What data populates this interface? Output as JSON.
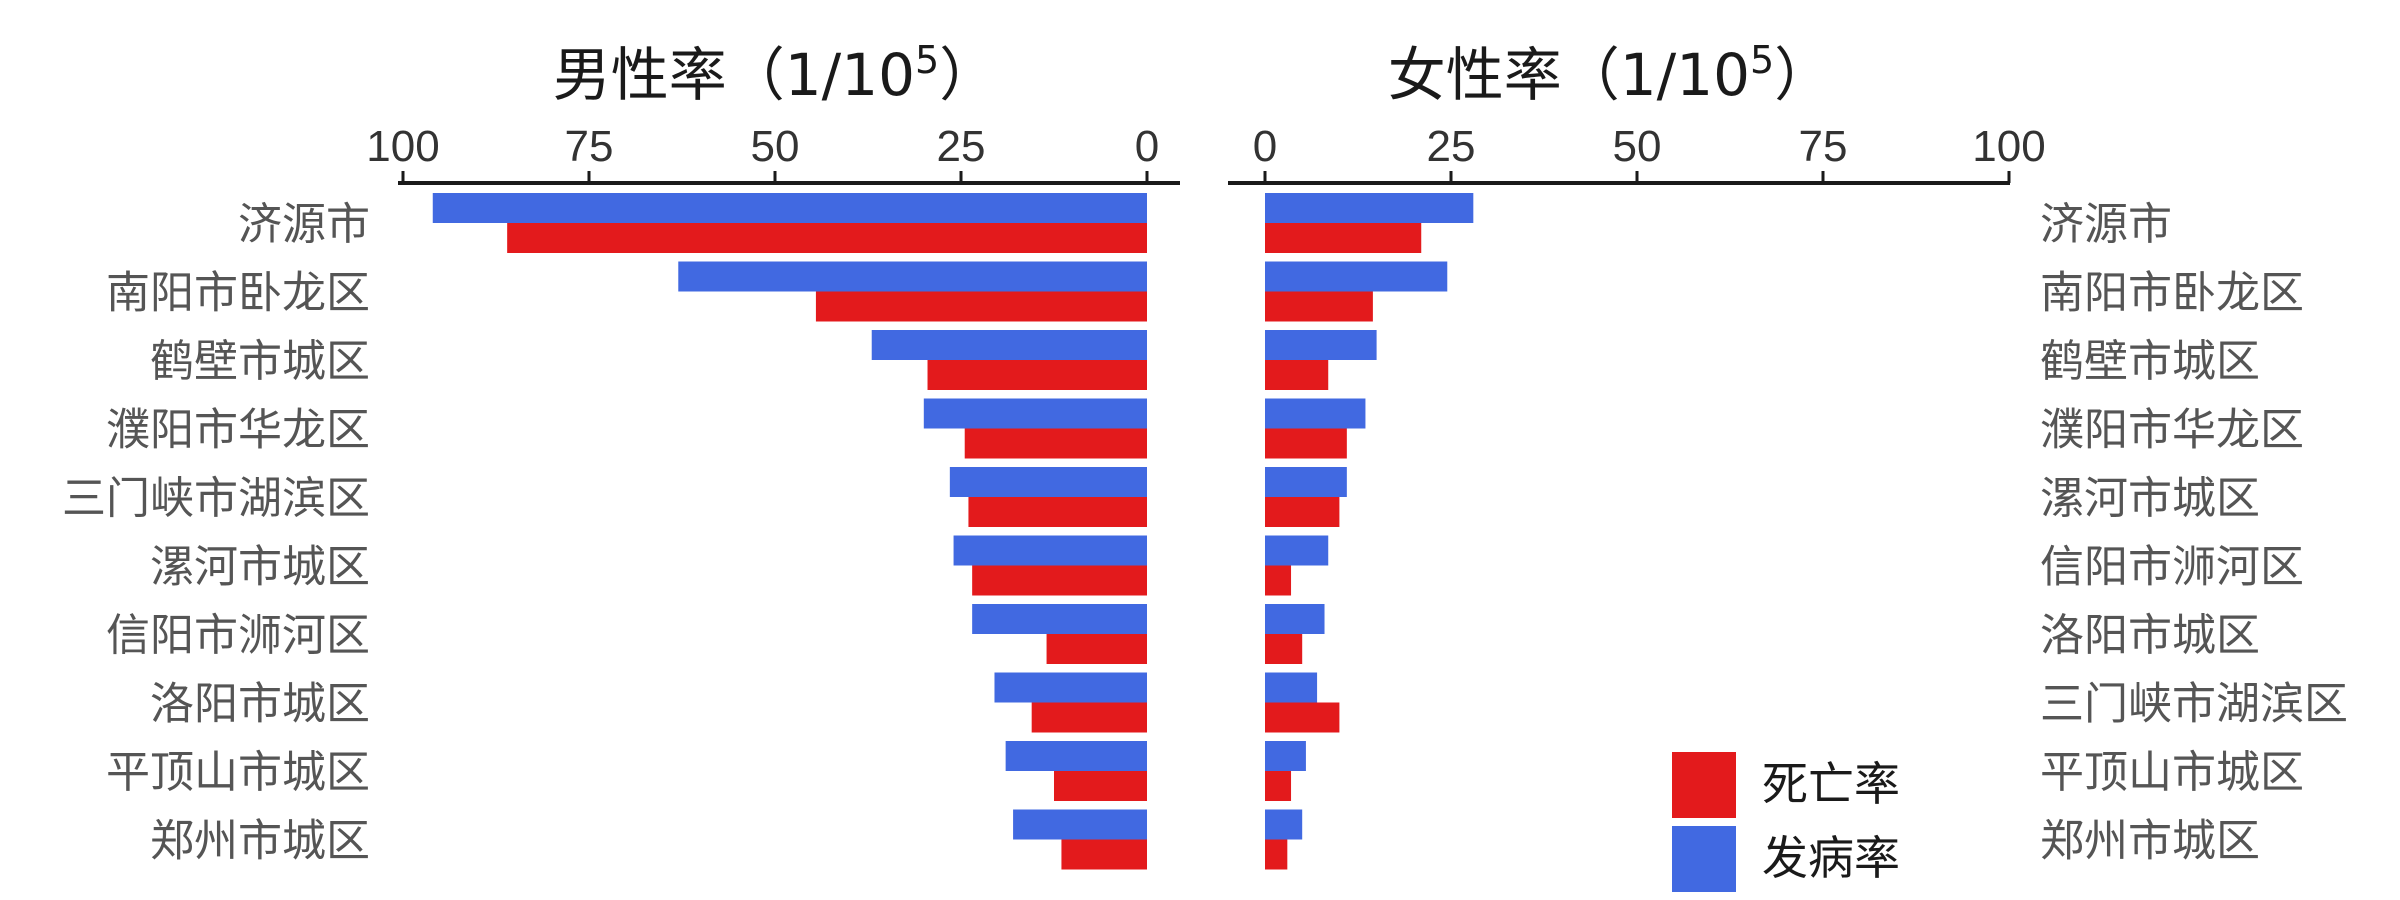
{
  "chart_data": [
    {
      "type": "bar",
      "orientation": "horizontal",
      "direction": "reversed",
      "title": "男性率（1/10",
      "title_sup": "5",
      "title_close": "）",
      "xlim": [
        0,
        100
      ],
      "ticks": [
        "100",
        "75",
        "50",
        "25",
        "0"
      ],
      "categories": [
        "济源市",
        "南阳市卧龙区",
        "鹤壁市城区",
        "濮阳市华龙区",
        "三门峡市湖滨区",
        "漯河市城区",
        "信阳市浉河区",
        "洛阳市城区",
        "平顶山市城区",
        "郑州市城区"
      ],
      "series": [
        {
          "name": "发病率",
          "color": "#4169e1",
          "values": [
            96,
            63,
            37,
            30,
            26.5,
            26,
            23.5,
            20.5,
            19,
            18
          ]
        },
        {
          "name": "死亡率",
          "color": "#e31a1c",
          "values": [
            86,
            44.5,
            29.5,
            24.5,
            24,
            23.5,
            13.5,
            15.5,
            12.5,
            11.5
          ]
        }
      ]
    },
    {
      "type": "bar",
      "orientation": "horizontal",
      "direction": "normal",
      "title": "女性率（1/10",
      "title_sup": "5",
      "title_close": "）",
      "xlim": [
        0,
        100
      ],
      "ticks": [
        "0",
        "25",
        "50",
        "75",
        "100"
      ],
      "categories": [
        "济源市",
        "南阳市卧龙区",
        "鹤壁市城区",
        "濮阳市华龙区",
        "漯河市城区",
        "信阳市浉河区",
        "洛阳市城区",
        "三门峡市湖滨区",
        "平顶山市城区",
        "郑州市城区"
      ],
      "series": [
        {
          "name": "发病率",
          "color": "#4169e1",
          "values": [
            28,
            24.5,
            15,
            13.5,
            11,
            8.5,
            8,
            7,
            5.5,
            5
          ]
        },
        {
          "name": "死亡率",
          "color": "#e31a1c",
          "values": [
            21,
            14.5,
            8.5,
            11,
            10,
            3.5,
            5,
            10,
            3.5,
            3
          ]
        }
      ]
    }
  ],
  "legend": {
    "position": "bottom-right-inner",
    "items": [
      {
        "label": "死亡率",
        "color": "#e31a1c"
      },
      {
        "label": "发病率",
        "color": "#4169e1"
      }
    ]
  }
}
